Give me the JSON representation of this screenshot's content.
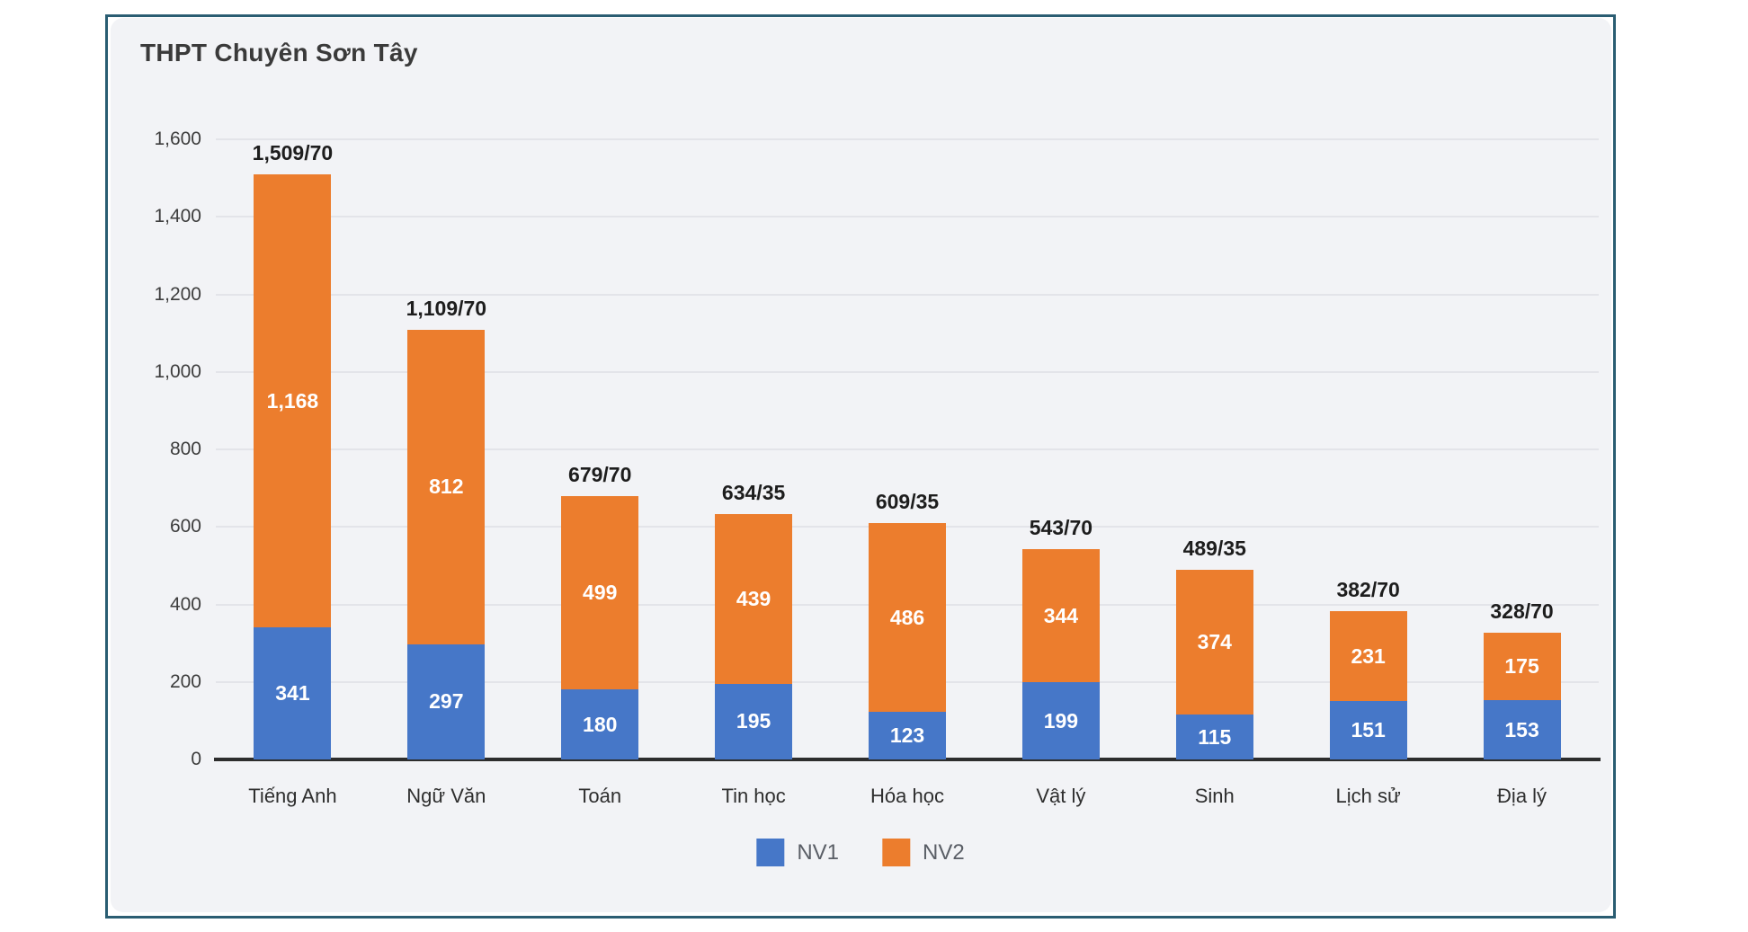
{
  "title": "THPT Chuyên Sơn Tây",
  "colors": {
    "nv1": "#4677c8",
    "nv2": "#ec7d2d",
    "card_border": "#2a5d72",
    "panel_bg": "#f2f3f6",
    "gridline": "#e3e4e9",
    "baseline": "#2d2d2d"
  },
  "chart_data": {
    "type": "bar",
    "stacked": true,
    "title": "THPT Chuyên Sơn Tây",
    "categories": [
      "Tiếng Anh",
      "Ngữ Văn",
      "Toán",
      "Tin học",
      "Hóa học",
      "Vật lý",
      "Sinh",
      "Lịch sử",
      "Địa lý"
    ],
    "series": [
      {
        "name": "NV1",
        "color": "#4677c8",
        "values": [
          341,
          297,
          180,
          195,
          123,
          199,
          115,
          151,
          153
        ],
        "value_labels": [
          "341",
          "297",
          "180",
          "195",
          "123",
          "199",
          "115",
          "151",
          "153"
        ]
      },
      {
        "name": "NV2",
        "color": "#ec7d2d",
        "values": [
          1168,
          812,
          499,
          439,
          486,
          344,
          374,
          231,
          175
        ],
        "value_labels": [
          "1,168",
          "812",
          "499",
          "439",
          "486",
          "344",
          "374",
          "231",
          "175"
        ]
      }
    ],
    "totals": [
      1509,
      1109,
      679,
      634,
      609,
      543,
      489,
      382,
      328
    ],
    "total_labels": [
      "1,509/70",
      "1,109/70",
      "679/70",
      "634/35",
      "609/35",
      "543/70",
      "489/35",
      "382/70",
      "328/70"
    ],
    "xlabel": "",
    "ylabel": "",
    "ylim": [
      0,
      1600
    ],
    "ytick_interval": 200,
    "ytick_labels": [
      "0",
      "200",
      "400",
      "600",
      "800",
      "1,000",
      "1,200",
      "1,400",
      "1,600"
    ],
    "grid": true,
    "legend_position": "bottom"
  }
}
